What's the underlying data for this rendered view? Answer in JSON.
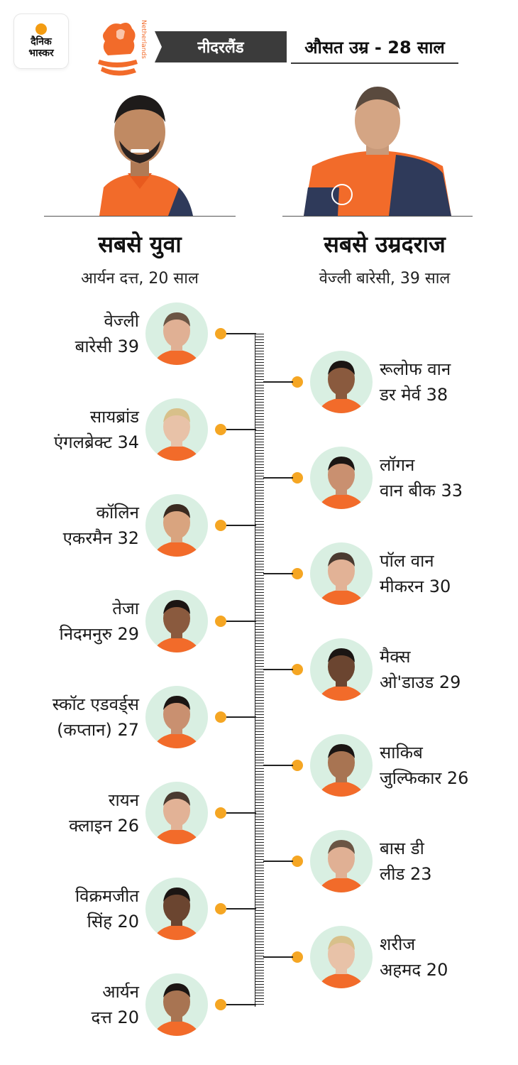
{
  "brand": {
    "line1": "दैनिक",
    "line2": "भास्कर",
    "crest_text": "Netherlands"
  },
  "header": {
    "team": "नीदरलैंड",
    "average_age": "औसत उम्र - 28 साल"
  },
  "youngest": {
    "title": "सबसे युवा",
    "subtitle": "आर्यन दत्त, 20 साल"
  },
  "oldest": {
    "title": "सबसे उम्रदराज",
    "subtitle": "वेज्ली बारेसी, 39 साल"
  },
  "colors": {
    "accent": "#f5a623",
    "jersey": "#f26b2a",
    "avatar_bg": "#d9efe2",
    "bar": "#3b3b3b"
  },
  "players_left": [
    {
      "line1": "वेज्ली",
      "line2": "बारेसी 39"
    },
    {
      "line1": "सायब्रांड",
      "line2": "एंगलब्रेक्ट 34"
    },
    {
      "line1": "कॉलिन",
      "line2": "एकरमैन 32"
    },
    {
      "line1": "तेजा",
      "line2": "निदमनुरु 29"
    },
    {
      "line1": "स्कॉट एडवर्ड्स",
      "line2": "(कप्तान) 27"
    },
    {
      "line1": "रायन",
      "line2": "क्लाइन 26"
    },
    {
      "line1": "विक्रमजीत",
      "line2": "सिंह 20"
    },
    {
      "line1": "आर्यन",
      "line2": "दत्त 20"
    }
  ],
  "players_right": [
    {
      "line1": "रूलोफ वान",
      "line2": "डर मेर्व 38"
    },
    {
      "line1": "लॉगन",
      "line2": "वान बीक 33"
    },
    {
      "line1": "पॉल वान",
      "line2": "मीकरन 30"
    },
    {
      "line1": "मैक्स",
      "line2": "ओ'डाउड 29"
    },
    {
      "line1": "साकिब",
      "line2": "जुल्फिकार 26"
    },
    {
      "line1": "बास डी",
      "line2": "लीड 23"
    },
    {
      "line1": "शरीज",
      "line2": "अहमद 20"
    }
  ]
}
